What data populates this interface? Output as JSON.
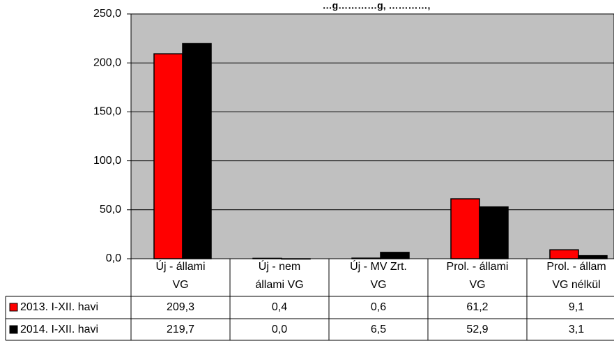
{
  "chart_data": {
    "type": "bar",
    "title": "…g…………g, …………,",
    "categories": [
      [
        "Új - állami",
        "VG"
      ],
      [
        "Új - nem",
        "állami VG"
      ],
      [
        "Új - MV Zrt.",
        "VG"
      ],
      [
        "Prol. - állami",
        "VG"
      ],
      [
        "Prol. - állam",
        "VG nélkül"
      ]
    ],
    "series": [
      {
        "name": "2013. I-XII. havi",
        "color": "#ff0000",
        "values": [
          209.3,
          0.4,
          0.6,
          61.2,
          9.1
        ],
        "labels": [
          "209,3",
          "0,4",
          "0,6",
          "61,2",
          "9,1"
        ]
      },
      {
        "name": "2014. I-XII. havi",
        "color": "#000000",
        "values": [
          219.7,
          0.0,
          6.5,
          52.9,
          3.1
        ],
        "labels": [
          "219,7",
          "0,0",
          "6,5",
          "52,9",
          "3,1"
        ]
      }
    ],
    "y_ticks": [
      0,
      50,
      100,
      150,
      200,
      250
    ],
    "y_tick_labels": [
      "0,0",
      "50,0",
      "100,0",
      "150,0",
      "200,0",
      "250,0"
    ],
    "ylim": [
      0,
      250
    ],
    "grid": true,
    "legend": "data-table",
    "plot_background": "#c0c0c0"
  }
}
